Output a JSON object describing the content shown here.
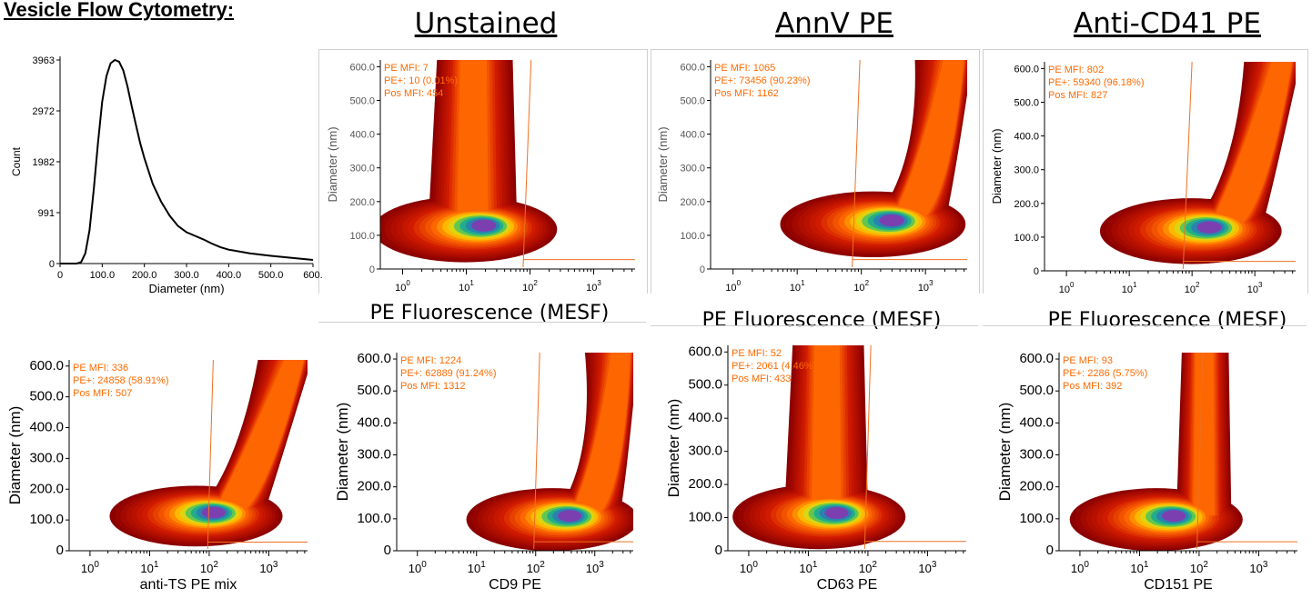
{
  "page": {
    "title": "Vesicle Flow Cytometry:",
    "column_titles": [
      "Unstained",
      "AnnV PE",
      "Anti-CD41 PE"
    ],
    "fluorescence_label": "PE Fluorescence  (MESF)"
  },
  "chart_data": [
    {
      "type": "line",
      "xlabel": "Diameter (nm)",
      "ylabel": "Count",
      "xlim": [
        0,
        600
      ],
      "ylim": [
        0,
        3963
      ],
      "x_ticks": [
        "0",
        "100.0",
        "200.0",
        "300.0",
        "400.0",
        "500.0",
        "600."
      ],
      "y_ticks": [
        "0",
        "991",
        "1982",
        "2972",
        "3963"
      ],
      "series": [
        {
          "x": [
            0,
            40,
            50,
            60,
            70,
            80,
            90,
            100,
            110,
            120,
            130,
            140,
            150,
            160,
            170,
            180,
            190,
            200,
            220,
            240,
            260,
            280,
            300,
            320,
            340,
            360,
            380,
            400,
            450,
            500,
            550,
            600
          ],
          "y": [
            0,
            0,
            30,
            200,
            650,
            1450,
            2350,
            3150,
            3650,
            3900,
            3963,
            3930,
            3760,
            3450,
            3060,
            2700,
            2350,
            2050,
            1550,
            1200,
            930,
            730,
            610,
            540,
            470,
            390,
            320,
            270,
            200,
            150,
            110,
            70
          ]
        }
      ]
    },
    {
      "type": "heatmap",
      "xlabel": "",
      "ylabel": "Diameter (nm)",
      "x_ticks": [
        "10^0",
        "10^1",
        "10^2",
        "10^3"
      ],
      "y_ticks": [
        "0",
        "100.0",
        "200.0",
        "300.0",
        "400.0",
        "500.0",
        "600.0"
      ],
      "stats": [
        "PE MFI: 7",
        "PE+: 10 (0.01%)",
        "Pos MFI: 454"
      ],
      "density_peak": {
        "log_x": 1.3,
        "y": 130
      }
    },
    {
      "type": "heatmap",
      "xlabel": "",
      "ylabel": "Diameter (nm)",
      "x_ticks": [
        "10^0",
        "10^1",
        "10^2",
        "10^3"
      ],
      "y_ticks": [
        "0",
        "100.0",
        "200.0",
        "300.0",
        "400.0",
        "500.0",
        "600.0"
      ],
      "stats": [
        "PE MFI: 1065",
        "PE+: 73456 (90.23%)",
        "Pos MFI: 1162"
      ],
      "density_peak": {
        "log_x": 2.5,
        "y": 145
      }
    },
    {
      "type": "heatmap",
      "xlabel": "",
      "ylabel": "Diameter (nm)",
      "x_ticks": [
        "10^0",
        "10^1",
        "10^2",
        "10^3"
      ],
      "y_ticks": [
        "0",
        "100.0",
        "200.0",
        "300.0",
        "400.0",
        "500.0",
        "600.0"
      ],
      "stats": [
        "PE MFI: 802",
        "PE+: 59340 (96.18%)",
        "Pos MFI: 827"
      ],
      "density_peak": {
        "log_x": 2.3,
        "y": 130
      }
    },
    {
      "type": "heatmap",
      "xlabel": "anti-TS PE mix",
      "ylabel": "Diameter (nm)",
      "x_ticks": [
        "10^0",
        "10^1",
        "10^2",
        "10^3"
      ],
      "y_ticks": [
        "0",
        "100.0",
        "200.0",
        "300.0",
        "400.0",
        "500.0",
        "600.0"
      ],
      "stats": [
        "PE MFI: 336",
        "PE+: 24858 (58.91%)",
        "Pos MFI: 507"
      ],
      "density_peak": {
        "log_x": 2.1,
        "y": 125
      }
    },
    {
      "type": "heatmap",
      "xlabel": "CD9 PE",
      "ylabel": "Diameter (nm)",
      "x_ticks": [
        "10^0",
        "10^1",
        "10^2",
        "10^3"
      ],
      "y_ticks": [
        "0",
        "100.0",
        "200.0",
        "300.0",
        "400.0",
        "500.0",
        "600.0"
      ],
      "stats": [
        "PE MFI: 1224",
        "PE+: 62889 (91.24%)",
        "Pos MFI: 1312"
      ],
      "density_peak": {
        "log_x": 2.6,
        "y": 110
      }
    },
    {
      "type": "heatmap",
      "xlabel": "CD63 PE",
      "ylabel": "Diameter (nm)",
      "x_ticks": [
        "10^0",
        "10^1",
        "10^2",
        "10^3"
      ],
      "y_ticks": [
        "0",
        "100.0",
        "200.0",
        "300.0",
        "400.0",
        "500.0",
        "600.0"
      ],
      "stats": [
        "PE MFI: 52",
        "PE+: 2061 (4.46%)",
        "Pos MFI: 433"
      ],
      "density_peak": {
        "log_x": 1.5,
        "y": 115
      }
    },
    {
      "type": "heatmap",
      "xlabel": "CD151 PE",
      "ylabel": "Diameter (nm)",
      "x_ticks": [
        "10^0",
        "10^1",
        "10^2",
        "10^3"
      ],
      "y_ticks": [
        "0",
        "100.0",
        "200.0",
        "300.0",
        "400.0",
        "500.0",
        "600.0"
      ],
      "stats": [
        "PE MFI: 93",
        "PE+: 2286 (5.75%)",
        "Pos MFI: 392"
      ],
      "density_peak": {
        "log_x": 1.6,
        "y": 110
      }
    }
  ],
  "colors": {
    "stats_text": "#ff6a00",
    "gate_line": "#f07020",
    "density_low": "#8b0000",
    "density_high": "#7b3fb0"
  }
}
